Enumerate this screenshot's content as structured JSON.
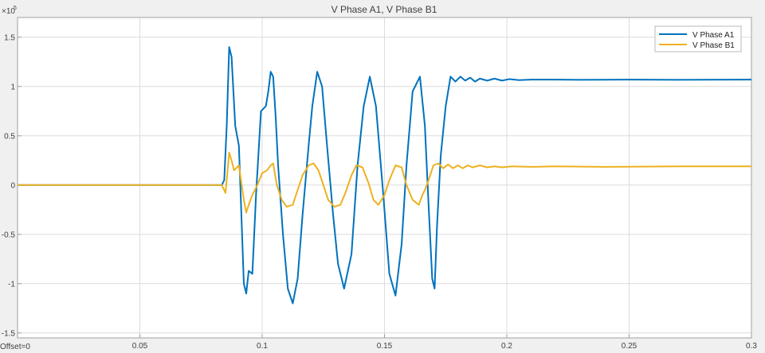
{
  "window": {
    "offset_label": "Offset=0"
  },
  "chart_data": {
    "type": "line",
    "title": "V Phase A1, V Phase B1",
    "xlabel": "",
    "ylabel": "",
    "y_exponent_label": "×10",
    "y_exponent_power": "5",
    "xlim": [
      0,
      0.3
    ],
    "ylim": [
      -1.55,
      1.7
    ],
    "x_ticks": [
      0,
      0.05,
      0.1,
      0.15,
      0.2,
      0.25,
      0.3
    ],
    "x_tick_labels": [
      "",
      "0.05",
      "0.1",
      "0.15",
      "0.2",
      "0.25",
      "0.3"
    ],
    "y_ticks": [
      -1.5,
      -1,
      -0.5,
      0,
      0.5,
      1,
      1.5
    ],
    "y_tick_labels": [
      "-1.5",
      "-1",
      "-0.5",
      "0",
      "0.5",
      "1",
      "1.5"
    ],
    "grid": true,
    "legend_position": "top-right",
    "colors": {
      "plot_bg": "#ffffff",
      "grid": "#dcdcdc",
      "axis": "#a0a0a0",
      "text": "#404040"
    },
    "series": [
      {
        "name": "V Phase A1",
        "color": "#0072bd",
        "x": [
          0,
          0.0835,
          0.0845,
          0.0855,
          0.0865,
          0.0875,
          0.089,
          0.0905,
          0.0915,
          0.0925,
          0.0935,
          0.0945,
          0.096,
          0.0975,
          0.0995,
          0.1015,
          0.1025,
          0.1035,
          0.1045,
          0.1055,
          0.1065,
          0.1085,
          0.1105,
          0.1125,
          0.1145,
          0.1165,
          0.119,
          0.1205,
          0.1225,
          0.1245,
          0.1265,
          0.129,
          0.131,
          0.1335,
          0.1365,
          0.139,
          0.1415,
          0.144,
          0.1465,
          0.1495,
          0.152,
          0.1545,
          0.157,
          0.159,
          0.1615,
          0.1645,
          0.1665,
          0.168,
          0.1695,
          0.1705,
          0.1715,
          0.173,
          0.175,
          0.177,
          0.179,
          0.181,
          0.183,
          0.185,
          0.187,
          0.189,
          0.192,
          0.195,
          0.198,
          0.201,
          0.205,
          0.21,
          0.22,
          0.23,
          0.25,
          0.27,
          0.3
        ],
        "values": [
          0,
          0,
          0.05,
          0.6,
          1.4,
          1.3,
          0.6,
          0.4,
          -0.3,
          -1.0,
          -1.1,
          -0.87,
          -0.9,
          -0.1,
          0.75,
          0.8,
          0.95,
          1.15,
          1.1,
          0.7,
          0.2,
          -0.5,
          -1.05,
          -1.2,
          -0.95,
          -0.3,
          0.4,
          0.8,
          1.15,
          1.0,
          0.4,
          -0.3,
          -0.8,
          -1.05,
          -0.7,
          0.2,
          0.8,
          1.1,
          0.8,
          -0.1,
          -0.9,
          -1.12,
          -0.6,
          0.2,
          0.95,
          1.1,
          0.6,
          -0.2,
          -0.95,
          -1.05,
          -0.4,
          0.3,
          0.8,
          1.1,
          1.05,
          1.1,
          1.06,
          1.09,
          1.05,
          1.08,
          1.06,
          1.08,
          1.06,
          1.075,
          1.065,
          1.07,
          1.07,
          1.068,
          1.07,
          1.068,
          1.07
        ]
      },
      {
        "name": "V Phase B1",
        "color": "#edb120",
        "x": [
          0,
          0.0835,
          0.085,
          0.0865,
          0.0875,
          0.0885,
          0.0905,
          0.0925,
          0.0935,
          0.0945,
          0.096,
          0.098,
          0.1,
          0.102,
          0.1035,
          0.1045,
          0.106,
          0.108,
          0.11,
          0.1125,
          0.1145,
          0.1165,
          0.119,
          0.121,
          0.123,
          0.125,
          0.127,
          0.1295,
          0.132,
          0.134,
          0.1365,
          0.1385,
          0.141,
          0.1435,
          0.1455,
          0.1475,
          0.15,
          0.152,
          0.1545,
          0.157,
          0.159,
          0.1615,
          0.164,
          0.1655,
          0.1665,
          0.168,
          0.17,
          0.172,
          0.174,
          0.176,
          0.178,
          0.18,
          0.182,
          0.184,
          0.186,
          0.189,
          0.192,
          0.195,
          0.198,
          0.202,
          0.21,
          0.22,
          0.24,
          0.27,
          0.3
        ],
        "values": [
          0,
          0,
          -0.08,
          0.33,
          0.25,
          0.15,
          0.2,
          -0.15,
          -0.28,
          -0.2,
          -0.1,
          0,
          0.12,
          0.15,
          0.2,
          0.22,
          0,
          -0.15,
          -0.22,
          -0.2,
          -0.05,
          0.1,
          0.2,
          0.22,
          0.15,
          0,
          -0.15,
          -0.22,
          -0.2,
          -0.08,
          0.1,
          0.2,
          0.18,
          0.02,
          -0.15,
          -0.2,
          -0.1,
          0.05,
          0.2,
          0.18,
          0,
          -0.15,
          -0.2,
          -0.1,
          -0.05,
          0.05,
          0.2,
          0.22,
          0.17,
          0.21,
          0.17,
          0.2,
          0.17,
          0.2,
          0.18,
          0.2,
          0.18,
          0.19,
          0.18,
          0.19,
          0.185,
          0.19,
          0.185,
          0.19,
          0.19
        ]
      }
    ]
  }
}
